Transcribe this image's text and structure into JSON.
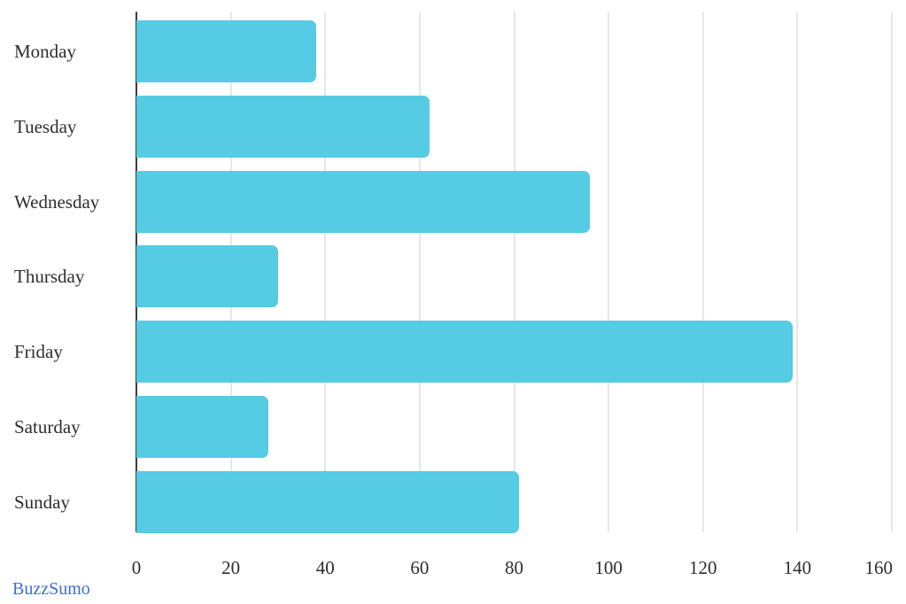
{
  "chart_data": {
    "type": "bar",
    "orientation": "horizontal",
    "title": "",
    "xlabel": "",
    "ylabel": "",
    "categories": [
      "Monday",
      "Tuesday",
      "Wednesday",
      "Thursday",
      "Friday",
      "Saturday",
      "Sunday"
    ],
    "values": [
      38,
      62,
      96,
      30,
      139,
      28,
      81
    ],
    "x_ticks": [
      0,
      20,
      40,
      60,
      80,
      100,
      120,
      140,
      160
    ],
    "xlim": [
      0,
      160
    ],
    "grid": "vertical-major-only",
    "legend": "none",
    "colors": {
      "bar": "#55cbe4",
      "axis_line": "#3d3d3d",
      "gridline": "#e7e7e7",
      "label_text": "#2e2e2e"
    }
  },
  "footer": {
    "brand": "BuzzSumo",
    "brand_color": "#3b6fd1"
  }
}
